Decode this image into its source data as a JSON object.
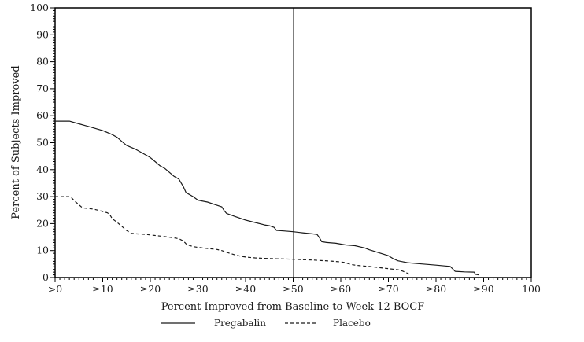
{
  "chart_data": {
    "type": "line",
    "title": "",
    "xlabel": "Percent Improved from Baseline to Week 12 BOCF",
    "ylabel": "Percent of Subjects Improved",
    "xlim": [
      0,
      100
    ],
    "ylim": [
      0,
      100
    ],
    "grid": "off",
    "legend_position": "bottom",
    "x_ticks": [
      {
        "value": 0,
        "label": ">0"
      },
      {
        "value": 10,
        "label": "≥10"
      },
      {
        "value": 20,
        "label": "≥20"
      },
      {
        "value": 30,
        "label": "≥30"
      },
      {
        "value": 40,
        "label": "≥40"
      },
      {
        "value": 50,
        "label": "≥50"
      },
      {
        "value": 60,
        "label": "≥60"
      },
      {
        "value": 70,
        "label": "≥70"
      },
      {
        "value": 80,
        "label": "≥80"
      },
      {
        "value": 90,
        "label": "≥90"
      },
      {
        "value": 100,
        "label": "100"
      }
    ],
    "y_ticks": [
      {
        "value": 0,
        "label": "0"
      },
      {
        "value": 10,
        "label": "10"
      },
      {
        "value": 20,
        "label": "20"
      },
      {
        "value": 30,
        "label": "30"
      },
      {
        "value": 40,
        "label": "40"
      },
      {
        "value": 50,
        "label": "50"
      },
      {
        "value": 60,
        "label": "60"
      },
      {
        "value": 70,
        "label": "70"
      },
      {
        "value": 80,
        "label": "80"
      },
      {
        "value": 90,
        "label": "90"
      },
      {
        "value": 100,
        "label": "100"
      }
    ],
    "minor_tick_step": 1,
    "reference_lines_x": [
      30,
      50
    ],
    "colors": {
      "axis": "#000000",
      "reference_line": "#7f7f7f",
      "pregabalin": "#1a1a1a",
      "placebo": "#1a1a1a"
    },
    "legend": [
      {
        "name": "Pregabalin",
        "style": "solid"
      },
      {
        "name": "Placebo",
        "style": "dashed"
      }
    ],
    "series": [
      {
        "name": "Pregabalin",
        "line": "solid",
        "points": [
          [
            0,
            58
          ],
          [
            3,
            58
          ],
          [
            5,
            57
          ],
          [
            6,
            56.5
          ],
          [
            8,
            55.5
          ],
          [
            10,
            54.5
          ],
          [
            12,
            53
          ],
          [
            13,
            52
          ],
          [
            14,
            50.5
          ],
          [
            15,
            49
          ],
          [
            17,
            47.5
          ],
          [
            19,
            45.5
          ],
          [
            20,
            44.5
          ],
          [
            21,
            43
          ],
          [
            22,
            41.5
          ],
          [
            23,
            40.5
          ],
          [
            24,
            39
          ],
          [
            25,
            37.5
          ],
          [
            26,
            36.5
          ],
          [
            26.5,
            35
          ],
          [
            27,
            33.5
          ],
          [
            27.5,
            31.5
          ],
          [
            28,
            31
          ],
          [
            29,
            30
          ],
          [
            30,
            28.7
          ],
          [
            32,
            28
          ],
          [
            34,
            26.8
          ],
          [
            35,
            26.2
          ],
          [
            35.5,
            24.8
          ],
          [
            36,
            23.8
          ],
          [
            38,
            22.5
          ],
          [
            40,
            21.3
          ],
          [
            42,
            20.4
          ],
          [
            44,
            19.5
          ],
          [
            45,
            19.2
          ],
          [
            46,
            18.6
          ],
          [
            46.5,
            17.5
          ],
          [
            48,
            17.3
          ],
          [
            50,
            17
          ],
          [
            52,
            16.6
          ],
          [
            54,
            16.2
          ],
          [
            55,
            16
          ],
          [
            55.5,
            14.8
          ],
          [
            56,
            13.3
          ],
          [
            57,
            13
          ],
          [
            59,
            12.7
          ],
          [
            61,
            12.1
          ],
          [
            63,
            11.8
          ],
          [
            64,
            11.4
          ],
          [
            65,
            11
          ],
          [
            66,
            10.3
          ],
          [
            68,
            9.2
          ],
          [
            70,
            8.1
          ],
          [
            71,
            7
          ],
          [
            72,
            6.2
          ],
          [
            74,
            5.5
          ],
          [
            76,
            5.2
          ],
          [
            78,
            4.9
          ],
          [
            80,
            4.6
          ],
          [
            82,
            4.3
          ],
          [
            83,
            4.1
          ],
          [
            83.5,
            3.2
          ],
          [
            84,
            2.3
          ],
          [
            86,
            2.1
          ],
          [
            88,
            2
          ],
          [
            88.3,
            1.2
          ],
          [
            89,
            1
          ]
        ]
      },
      {
        "name": "Placebo",
        "line": "dashed",
        "points": [
          [
            0,
            30
          ],
          [
            3,
            30
          ],
          [
            3.5,
            29.5
          ],
          [
            4,
            28.5
          ],
          [
            5,
            27
          ],
          [
            5.5,
            26.2
          ],
          [
            6,
            25.8
          ],
          [
            8,
            25.4
          ],
          [
            9,
            25
          ],
          [
            10,
            24.5
          ],
          [
            11,
            24
          ],
          [
            11.5,
            23.3
          ],
          [
            12,
            21.8
          ],
          [
            13,
            20.5
          ],
          [
            14,
            19
          ],
          [
            15,
            17.5
          ],
          [
            16,
            16.4
          ],
          [
            17,
            16.2
          ],
          [
            19,
            16
          ],
          [
            20,
            15.8
          ],
          [
            22,
            15.4
          ],
          [
            24,
            15
          ],
          [
            25,
            14.7
          ],
          [
            26,
            14.4
          ],
          [
            27,
            13.5
          ],
          [
            27.5,
            12.5
          ],
          [
            28,
            12
          ],
          [
            29,
            11.5
          ],
          [
            30,
            11.2
          ],
          [
            32,
            10.8
          ],
          [
            34,
            10.4
          ],
          [
            35,
            10
          ],
          [
            36,
            9.4
          ],
          [
            37,
            8.8
          ],
          [
            38,
            8.3
          ],
          [
            39,
            7.9
          ],
          [
            40,
            7.6
          ],
          [
            42,
            7.3
          ],
          [
            44,
            7.1
          ],
          [
            46,
            7
          ],
          [
            50,
            6.8
          ],
          [
            54,
            6.5
          ],
          [
            58,
            6.1
          ],
          [
            60,
            5.8
          ],
          [
            61,
            5.5
          ],
          [
            62,
            4.9
          ],
          [
            63,
            4.6
          ],
          [
            64,
            4.4
          ],
          [
            66,
            4.1
          ],
          [
            68,
            3.7
          ],
          [
            70,
            3.3
          ],
          [
            72,
            2.9
          ],
          [
            73,
            2.4
          ],
          [
            74,
            1.6
          ],
          [
            74.5,
            1.1
          ]
        ]
      }
    ]
  }
}
